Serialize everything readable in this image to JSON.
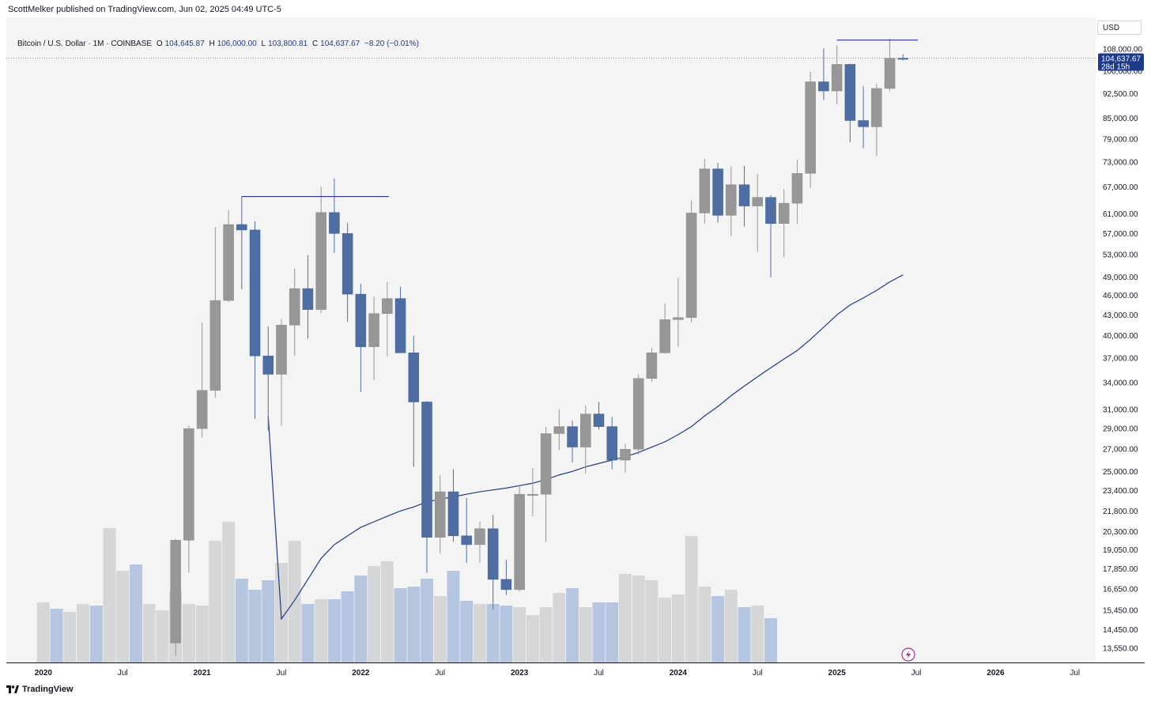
{
  "publish_line": "ScottMelker published on TradingView.com, Jun 02, 2025 04:49 UTC-5",
  "legend": {
    "symbol": "Bitcoin / U.S. Dollar · 1M · COINBASE",
    "o_label": "O",
    "o_value": "104,645.87",
    "h_label": "H",
    "h_value": "106,000.00",
    "l_label": "L",
    "l_value": "103,800.81",
    "c_label": "C",
    "c_value": "104,637.67",
    "change": "−8.20 (−0.01%)"
  },
  "currency_button": "USD",
  "last_price_tag": {
    "price": "104,637.67",
    "countdown": "28d 15h"
  },
  "footer_brand": "TradingView",
  "colors": {
    "up_candle": "#979797",
    "down_candle": "#4e6ea3",
    "up_volume": "#d5d6d8",
    "down_volume": "#b6c6e0",
    "ma_line": "#1e3a8a",
    "trendline": "#2b2fbf",
    "price_tag": "#1e3a8a"
  },
  "chart_data": {
    "type": "candlestick",
    "interval": "1M",
    "y_scale": "log",
    "ylim": [
      12800,
      120000
    ],
    "y_ticks": [
      "108,000.00",
      "100,000.00",
      "92,500.00",
      "85,000.00",
      "79,000.00",
      "73,000.00",
      "67,000.00",
      "61,000.00",
      "57,000.00",
      "53,000.00",
      "49,000.00",
      "46,000.00",
      "43,000.00",
      "40,000.00",
      "37,000.00",
      "34,000.00",
      "31,000.00",
      "29,000.00",
      "27,000.00",
      "25,000.00",
      "23,400.00",
      "21,800.00",
      "20,300.00",
      "19,050.00",
      "17,850.00",
      "16,650.00",
      "15,450.00",
      "14,450.00",
      "13,550.00"
    ],
    "y_tick_top_partial": "116,000.00",
    "x_labels": [
      "2020",
      "Jul",
      "2021",
      "Jul",
      "2022",
      "Jul",
      "2023",
      "Jul",
      "2024",
      "Jul",
      "2025",
      "Jul",
      "2026",
      "Jul"
    ],
    "candles": [
      {
        "date": "2020-11",
        "open": 13800,
        "high": 19800,
        "low": 13200,
        "close": 19700
      },
      {
        "date": "2020-12",
        "open": 19700,
        "high": 29300,
        "low": 17600,
        "close": 29000
      },
      {
        "date": "2021-01",
        "open": 29000,
        "high": 41900,
        "low": 28100,
        "close": 33100
      },
      {
        "date": "2021-02",
        "open": 33100,
        "high": 58300,
        "low": 32300,
        "close": 45200
      },
      {
        "date": "2021-03",
        "open": 45200,
        "high": 61800,
        "low": 44900,
        "close": 58800
      },
      {
        "date": "2021-04",
        "open": 58800,
        "high": 64800,
        "low": 47000,
        "close": 57700
      },
      {
        "date": "2021-05",
        "open": 57700,
        "high": 59500,
        "low": 30000,
        "close": 37300
      },
      {
        "date": "2021-06",
        "open": 37300,
        "high": 41300,
        "low": 28800,
        "close": 35000
      },
      {
        "date": "2021-07",
        "open": 35000,
        "high": 42400,
        "low": 29300,
        "close": 41500
      },
      {
        "date": "2021-08",
        "open": 41500,
        "high": 50500,
        "low": 37300,
        "close": 47100
      },
      {
        "date": "2021-09",
        "open": 47100,
        "high": 52900,
        "low": 39600,
        "close": 43800
      },
      {
        "date": "2021-10",
        "open": 43800,
        "high": 67000,
        "low": 43300,
        "close": 61300
      },
      {
        "date": "2021-11",
        "open": 61300,
        "high": 69000,
        "low": 53300,
        "close": 57000
      },
      {
        "date": "2021-12",
        "open": 57000,
        "high": 59100,
        "low": 42000,
        "close": 46200
      },
      {
        "date": "2022-01",
        "open": 46200,
        "high": 47900,
        "low": 32900,
        "close": 38500
      },
      {
        "date": "2022-02",
        "open": 38500,
        "high": 45800,
        "low": 34300,
        "close": 43200
      },
      {
        "date": "2022-03",
        "open": 43200,
        "high": 48200,
        "low": 37200,
        "close": 45500
      },
      {
        "date": "2022-04",
        "open": 45500,
        "high": 47400,
        "low": 37700,
        "close": 37700
      },
      {
        "date": "2022-05",
        "open": 37700,
        "high": 40000,
        "low": 25400,
        "close": 31800
      },
      {
        "date": "2022-06",
        "open": 31800,
        "high": 31900,
        "low": 17600,
        "close": 19900
      },
      {
        "date": "2022-07",
        "open": 19900,
        "high": 24700,
        "low": 18800,
        "close": 23300
      },
      {
        "date": "2022-08",
        "open": 23300,
        "high": 25200,
        "low": 19600,
        "close": 20000
      },
      {
        "date": "2022-09",
        "open": 20000,
        "high": 22800,
        "low": 18200,
        "close": 19400
      },
      {
        "date": "2022-10",
        "open": 19400,
        "high": 21000,
        "low": 18200,
        "close": 20500
      },
      {
        "date": "2022-11",
        "open": 20500,
        "high": 21500,
        "low": 15500,
        "close": 17200
      },
      {
        "date": "2022-12",
        "open": 17200,
        "high": 18400,
        "low": 16300,
        "close": 16600
      },
      {
        "date": "2023-01",
        "open": 16600,
        "high": 23900,
        "low": 16500,
        "close": 23100
      },
      {
        "date": "2023-02",
        "open": 23100,
        "high": 25300,
        "low": 21400,
        "close": 23100
      },
      {
        "date": "2023-03",
        "open": 23100,
        "high": 29200,
        "low": 19600,
        "close": 28500
      },
      {
        "date": "2023-04",
        "open": 28500,
        "high": 31000,
        "low": 26900,
        "close": 29200
      },
      {
        "date": "2023-05",
        "open": 29200,
        "high": 29800,
        "low": 25800,
        "close": 27200
      },
      {
        "date": "2023-06",
        "open": 27200,
        "high": 31400,
        "low": 24800,
        "close": 30500
      },
      {
        "date": "2023-07",
        "open": 30500,
        "high": 31800,
        "low": 28900,
        "close": 29200
      },
      {
        "date": "2023-08",
        "open": 29200,
        "high": 30200,
        "low": 25200,
        "close": 26000
      },
      {
        "date": "2023-09",
        "open": 26000,
        "high": 27500,
        "low": 24900,
        "close": 27000
      },
      {
        "date": "2023-10",
        "open": 27000,
        "high": 35000,
        "low": 26500,
        "close": 34500
      },
      {
        "date": "2023-11",
        "open": 34500,
        "high": 38400,
        "low": 34100,
        "close": 37700
      },
      {
        "date": "2023-12",
        "open": 37700,
        "high": 44700,
        "low": 37600,
        "close": 42300
      },
      {
        "date": "2024-01",
        "open": 42300,
        "high": 48900,
        "low": 38500,
        "close": 42600
      },
      {
        "date": "2024-02",
        "open": 42600,
        "high": 64000,
        "low": 41900,
        "close": 61200
      },
      {
        "date": "2024-03",
        "open": 61200,
        "high": 73800,
        "low": 59000,
        "close": 71300
      },
      {
        "date": "2024-04",
        "open": 71300,
        "high": 72800,
        "low": 59200,
        "close": 60700
      },
      {
        "date": "2024-05",
        "open": 60700,
        "high": 71900,
        "low": 56500,
        "close": 67500
      },
      {
        "date": "2024-06",
        "open": 67500,
        "high": 72000,
        "low": 58400,
        "close": 62700
      },
      {
        "date": "2024-07",
        "open": 62700,
        "high": 70100,
        "low": 53500,
        "close": 64600
      },
      {
        "date": "2024-08",
        "open": 64600,
        "high": 65100,
        "low": 49000,
        "close": 59000
      },
      {
        "date": "2024-09",
        "open": 59000,
        "high": 66500,
        "low": 52500,
        "close": 63300
      },
      {
        "date": "2024-10",
        "open": 63300,
        "high": 73600,
        "low": 58900,
        "close": 70200
      },
      {
        "date": "2024-11",
        "open": 70200,
        "high": 99800,
        "low": 66800,
        "close": 96400
      },
      {
        "date": "2024-12",
        "open": 96400,
        "high": 108300,
        "low": 90500,
        "close": 93400
      },
      {
        "date": "2025-01",
        "open": 93400,
        "high": 109400,
        "low": 89200,
        "close": 102400
      },
      {
        "date": "2025-02",
        "open": 102400,
        "high": 102700,
        "low": 78200,
        "close": 84300
      },
      {
        "date": "2025-03",
        "open": 84300,
        "high": 95000,
        "low": 76600,
        "close": 82500
      },
      {
        "date": "2025-04",
        "open": 82500,
        "high": 95800,
        "low": 74500,
        "close": 94200
      },
      {
        "date": "2025-05",
        "open": 94200,
        "high": 111900,
        "low": 93300,
        "close": 104600
      },
      {
        "date": "2025-06",
        "open": 104645.87,
        "high": 106000,
        "low": 103800.81,
        "close": 104637.67
      }
    ],
    "volume_relative": [
      0.38,
      0.34,
      0.32,
      0.37,
      0.36,
      0.85,
      0.58,
      0.62,
      0.37,
      0.33,
      0.45,
      0.37,
      0.36,
      0.77,
      0.89,
      0.53,
      0.46,
      0.52,
      0.63,
      0.77,
      0.37,
      0.4,
      0.4,
      0.45,
      0.55,
      0.61,
      0.64,
      0.47,
      0.48,
      0.53,
      0.42,
      0.58,
      0.39,
      0.37,
      0.37,
      0.36,
      0.35,
      0.3,
      0.35,
      0.44,
      0.47,
      0.35,
      0.38,
      0.38,
      0.56,
      0.55,
      0.52,
      0.41,
      0.43,
      0.8,
      0.48,
      0.42,
      0.46,
      0.35,
      0.36,
      0.28
    ],
    "moving_average": {
      "points": [
        [
          30300,
          "2021-06"
        ],
        [
          15000,
          "2021-07"
        ],
        [
          16000,
          "2021-08"
        ],
        [
          17200,
          "2021-09"
        ],
        [
          18500,
          "2021-10"
        ],
        [
          19400,
          "2021-11"
        ],
        [
          20000,
          "2021-12"
        ],
        [
          20600,
          "2022-01"
        ],
        [
          21000,
          "2022-02"
        ],
        [
          21400,
          "2022-03"
        ],
        [
          21800,
          "2022-04"
        ],
        [
          22100,
          "2022-05"
        ],
        [
          22500,
          "2022-06"
        ],
        [
          22700,
          "2022-07"
        ],
        [
          22900,
          "2022-08"
        ],
        [
          23100,
          "2022-09"
        ],
        [
          23300,
          "2022-10"
        ],
        [
          23450,
          "2022-11"
        ],
        [
          23600,
          "2022-12"
        ],
        [
          23800,
          "2023-01"
        ],
        [
          24000,
          "2023-02"
        ],
        [
          24300,
          "2023-03"
        ],
        [
          24700,
          "2023-04"
        ],
        [
          25000,
          "2023-05"
        ],
        [
          25400,
          "2023-06"
        ],
        [
          25700,
          "2023-07"
        ],
        [
          26000,
          "2023-08"
        ],
        [
          26300,
          "2023-09"
        ],
        [
          26700,
          "2023-10"
        ],
        [
          27200,
          "2023-11"
        ],
        [
          27700,
          "2023-12"
        ],
        [
          28400,
          "2024-01"
        ],
        [
          29200,
          "2024-02"
        ],
        [
          30300,
          "2024-03"
        ],
        [
          31300,
          "2024-04"
        ],
        [
          32500,
          "2024-05"
        ],
        [
          33600,
          "2024-06"
        ],
        [
          34700,
          "2024-07"
        ],
        [
          35800,
          "2024-08"
        ],
        [
          36900,
          "2024-09"
        ],
        [
          38000,
          "2024-10"
        ],
        [
          39500,
          "2024-11"
        ],
        [
          41200,
          "2024-12"
        ],
        [
          43000,
          "2025-01"
        ],
        [
          44500,
          "2025-02"
        ],
        [
          45600,
          "2025-03"
        ],
        [
          46800,
          "2025-04"
        ],
        [
          48200,
          "2025-05"
        ],
        [
          49400,
          "2025-06"
        ]
      ]
    },
    "trendlines": [
      {
        "price": 64800,
        "from": "2021-04",
        "to": "2022-03"
      },
      {
        "price": 111400,
        "from": "2025-01",
        "to": "2025-07"
      }
    ]
  }
}
